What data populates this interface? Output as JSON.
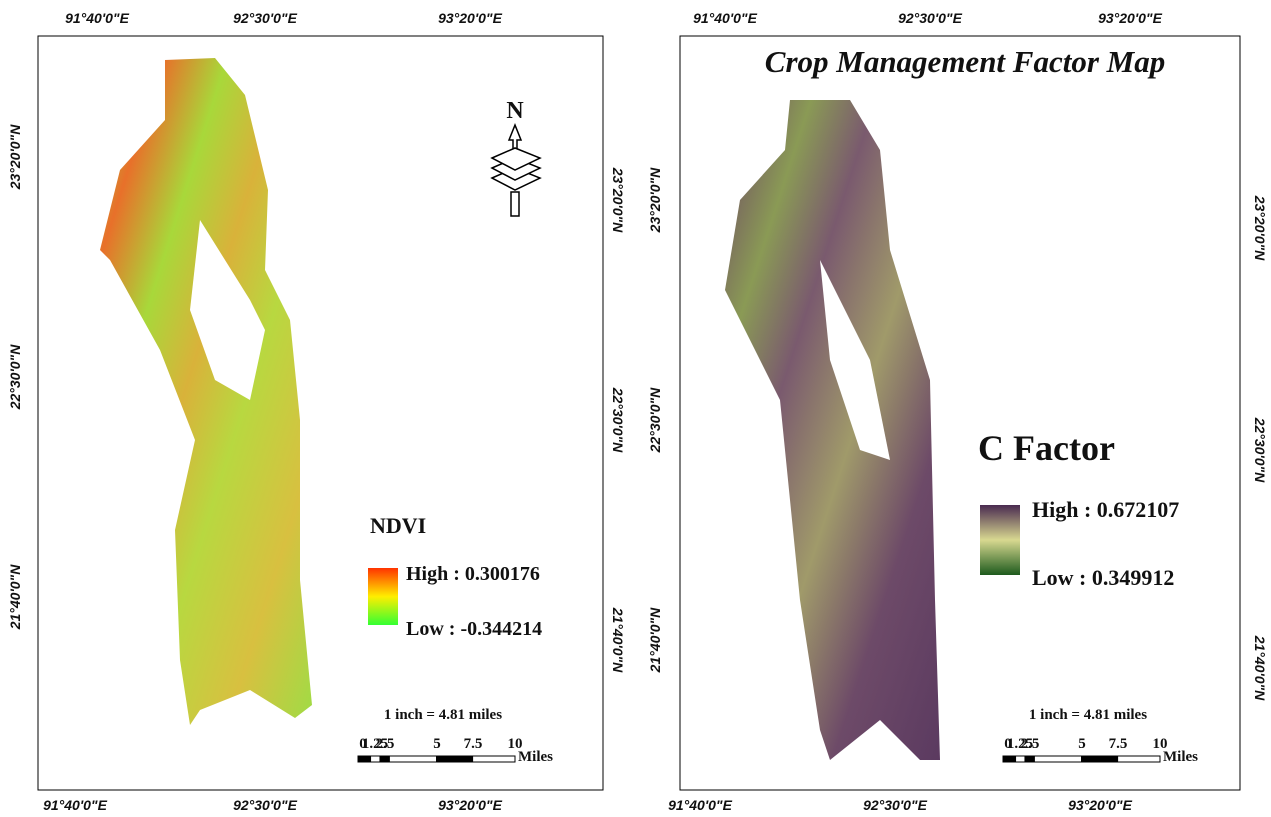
{
  "maps": [
    {
      "top_labels": [
        "91°40'0\"E",
        "92°30'0\"E",
        "93°20'0\"E"
      ],
      "bottom_labels": [
        "91°40'0\"E",
        "92°30'0\"E",
        "93°20'0\"E"
      ],
      "left_labels": [
        "23°20'0\"N",
        "22°30'0\"N",
        "21°40'0\"N"
      ],
      "right_labels": [
        "23°20'0\"N",
        "22°30'0\"N",
        "21°40'0\"N"
      ],
      "north": "N",
      "legend": {
        "title": "NDVI",
        "high": "High : 0.300176",
        "low": "Low : -0.344214"
      },
      "scale_text": "1 inch = 4.81 miles",
      "scale_ticks": [
        "0",
        "1.25",
        "2.5",
        "5",
        "7.5",
        "10"
      ],
      "scale_unit": "Miles"
    },
    {
      "title": "Crop Management Factor Map",
      "top_labels": [
        "91°40'0\"E",
        "92°30'0\"E",
        "93°20'0\"E"
      ],
      "bottom_labels": [
        "91°40'0\"E",
        "92°30'0\"E",
        "93°20'0\"E"
      ],
      "left_labels": [
        "23°20'0\"N",
        "22°30'0\"N",
        "21°40'0\"N"
      ],
      "right_labels": [
        "23°20'0\"N",
        "22°30'0\"N",
        "21°40'0\"N"
      ],
      "legend": {
        "title": "C Factor",
        "high": "High : 0.672107",
        "low": "Low : 0.349912"
      },
      "scale_text": "1 inch = 4.81 miles",
      "scale_ticks": [
        "0",
        "1.25",
        "2.5",
        "5",
        "7.5",
        "10"
      ],
      "scale_unit": "Miles"
    }
  ]
}
